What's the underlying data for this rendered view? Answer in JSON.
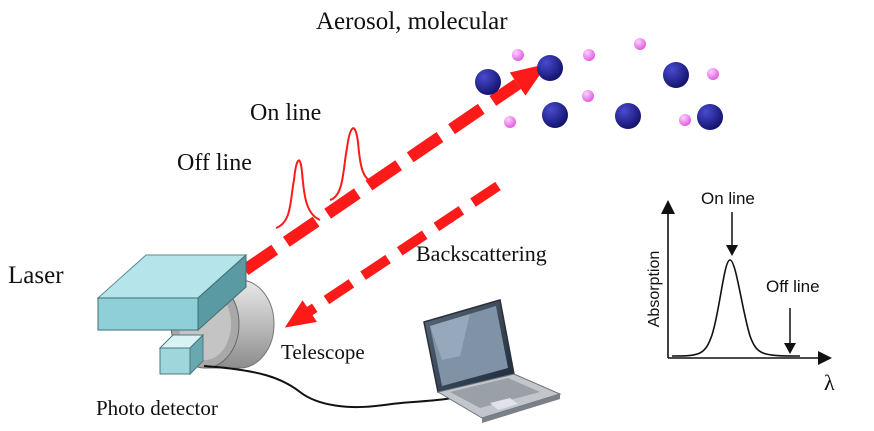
{
  "labels": {
    "aerosol": "Aerosol, molecular",
    "on_line": "On line",
    "off_line": "Off line",
    "laser": "Laser",
    "backscattering": "Backscattering",
    "telescope": "Telescope",
    "photo_detector": "Photo detector"
  },
  "inset": {
    "y_label": "Absorption",
    "x_label": "λ",
    "on_line": "On line",
    "off_line": "Off line"
  },
  "colors": {
    "beam": "#ff1a1a",
    "molecule_large": "#1f1f8f",
    "molecule_small": "#f07df0",
    "laser_body": "#8fd0d8"
  }
}
